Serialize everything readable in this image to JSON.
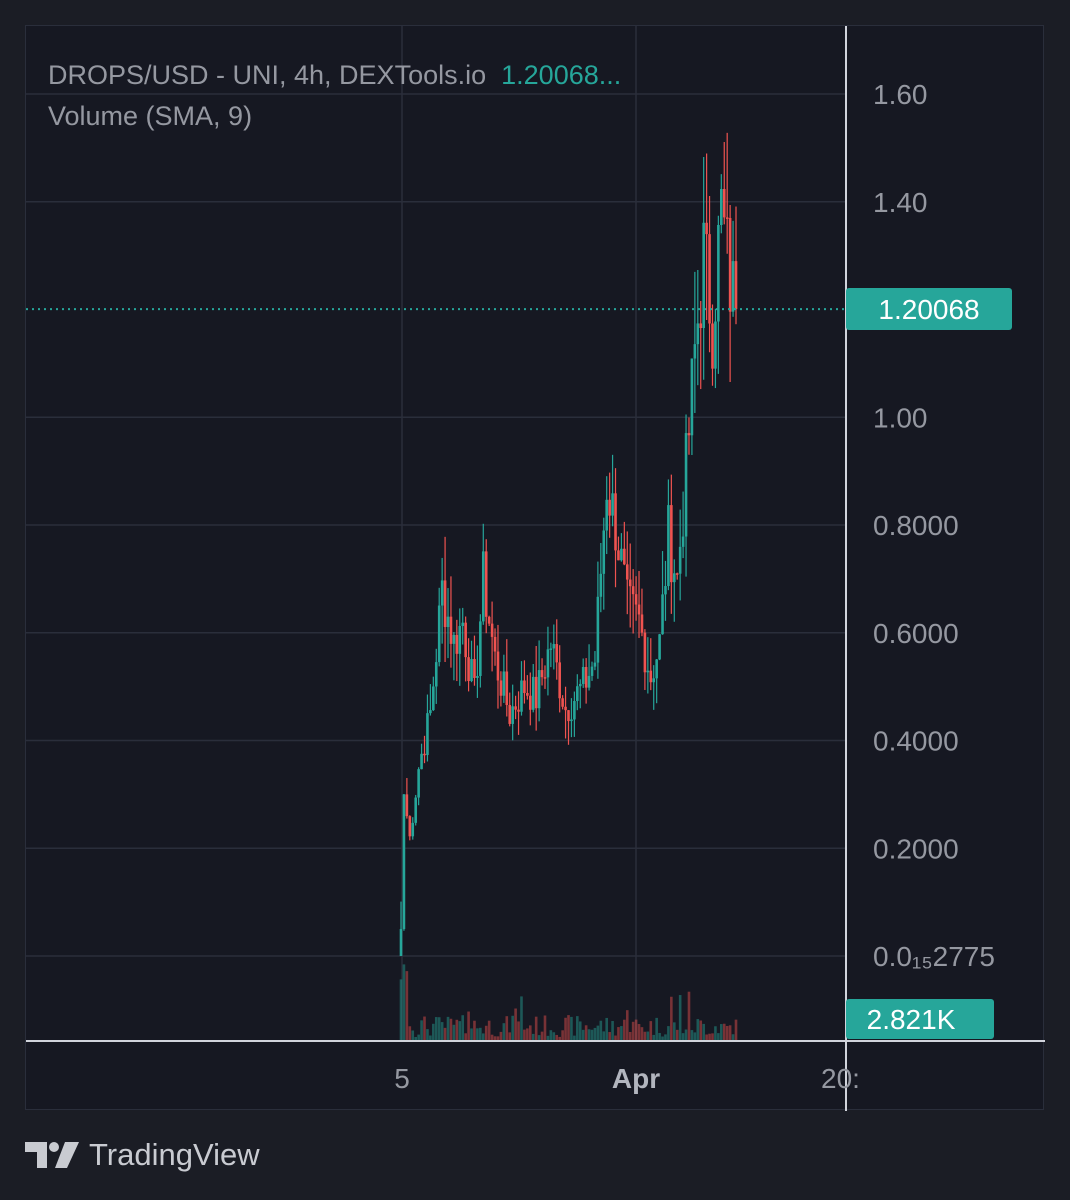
{
  "legend": {
    "symbol": "DROPS/USD - UNI, 4h, DEXTools.io",
    "last_price": "1.20068...",
    "volume_label": "Volume (SMA, 9)"
  },
  "price_tag": "1.20068",
  "volume_tag": "2.821K",
  "footer": {
    "brand": "TradingView"
  },
  "colors": {
    "up": "#26a69a",
    "down": "#ef5350",
    "background": "#161822",
    "grid": "#2a2e3b",
    "axis_text": "#9598a1"
  },
  "chart_data": {
    "type": "candlestick",
    "title": "DROPS/USD - UNI, 4h, DEXTools.io",
    "y_ticks": [
      "1.60",
      "1.40",
      "1.00",
      "0.8000",
      "0.6000",
      "0.4000",
      "0.2000"
    ],
    "y_tick_values": [
      1.6,
      1.4,
      1.0,
      0.8,
      0.6,
      0.4,
      0.2
    ],
    "y_min_label": "0.0₁₅2775",
    "x_ticks": [
      "5",
      "Apr",
      "20:"
    ],
    "ylim": [
      0,
      1.75
    ],
    "last_price": 1.20068,
    "grid": true,
    "price_axis": "right",
    "volume_indicator": "Volume (SMA, 9)",
    "last_volume": "2.821K",
    "anchors": [
      {
        "i": 0,
        "p": 0.05
      },
      {
        "i": 1,
        "p": 0.3
      },
      {
        "i": 3,
        "p": 0.22
      },
      {
        "i": 6,
        "p": 0.35
      },
      {
        "i": 10,
        "p": 0.45
      },
      {
        "i": 14,
        "p": 0.68
      },
      {
        "i": 18,
        "p": 0.58
      },
      {
        "i": 21,
        "p": 0.62
      },
      {
        "i": 25,
        "p": 0.48
      },
      {
        "i": 28,
        "p": 0.7
      },
      {
        "i": 32,
        "p": 0.55
      },
      {
        "i": 37,
        "p": 0.45
      },
      {
        "i": 42,
        "p": 0.5
      },
      {
        "i": 46,
        "p": 0.48
      },
      {
        "i": 51,
        "p": 0.58
      },
      {
        "i": 56,
        "p": 0.46
      },
      {
        "i": 62,
        "p": 0.5
      },
      {
        "i": 66,
        "p": 0.55
      },
      {
        "i": 70,
        "p": 0.88
      },
      {
        "i": 73,
        "p": 0.8
      },
      {
        "i": 77,
        "p": 0.65
      },
      {
        "i": 81,
        "p": 0.62
      },
      {
        "i": 85,
        "p": 0.52
      },
      {
        "i": 88,
        "p": 0.58
      },
      {
        "i": 91,
        "p": 0.78
      },
      {
        "i": 94,
        "p": 0.7
      },
      {
        "i": 97,
        "p": 0.9
      },
      {
        "i": 100,
        "p": 1.12
      },
      {
        "i": 103,
        "p": 1.3
      },
      {
        "i": 106,
        "p": 1.18
      },
      {
        "i": 109,
        "p": 1.38
      },
      {
        "i": 112,
        "p": 1.25
      },
      {
        "i": 114,
        "p": 1.2
      }
    ]
  }
}
